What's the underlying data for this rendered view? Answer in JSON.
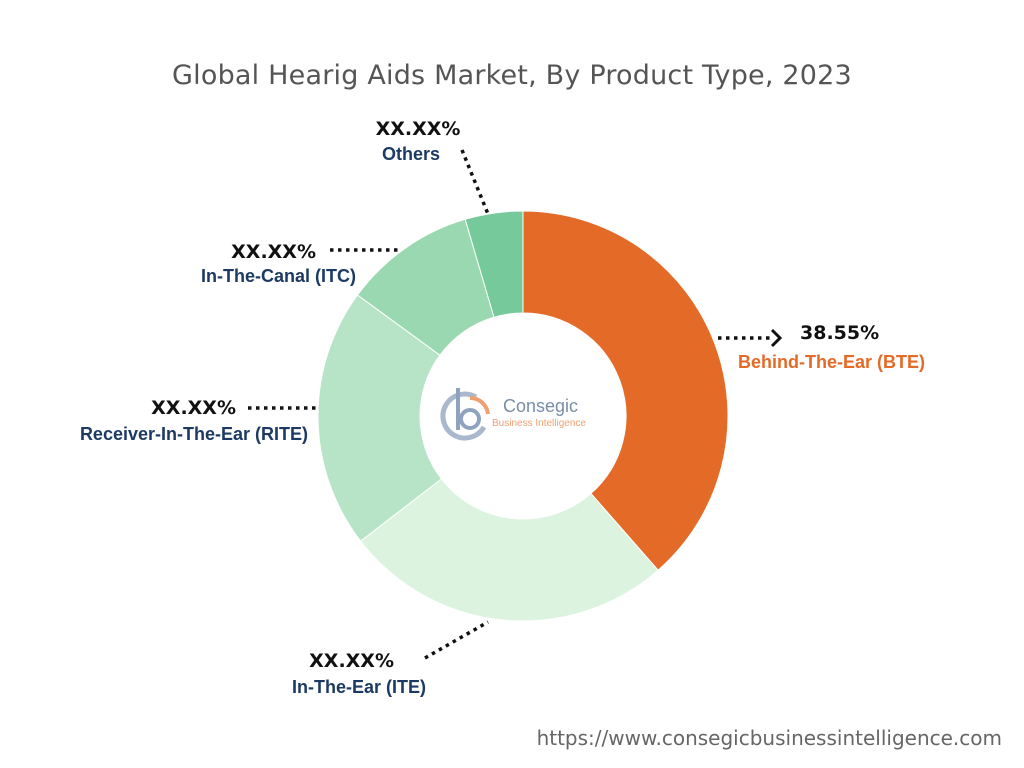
{
  "chart_data": {
    "type": "pie",
    "title": "Global Hearig Aids Market, By Product Type, 2023",
    "categories": [
      "Behind-The-Ear (BTE)",
      "In-The-Ear (ITE)",
      "Receiver-In-The-Ear (RITE)",
      "In-The-Canal (ITC)",
      "Others"
    ],
    "labels": [
      "38.55%",
      "XX.XX%",
      "XX.XX%",
      "XX.XX%",
      "XX.XX%"
    ],
    "values": [
      38.55,
      26.0,
      20.5,
      10.4,
      4.55
    ],
    "colors": [
      "#e46a27",
      "#dcf3df",
      "#b7e4c6",
      "#99d8b0",
      "#76c99a"
    ],
    "label_colors": [
      "#e46a27",
      "#1c3a63",
      "#1c3a63",
      "#1c3a63",
      "#1c3a63"
    ]
  },
  "logo": {
    "name": "Consegic",
    "tagline": "Business Intelligence"
  },
  "source_url": "https://www.consegicbusinessintelligence.com"
}
